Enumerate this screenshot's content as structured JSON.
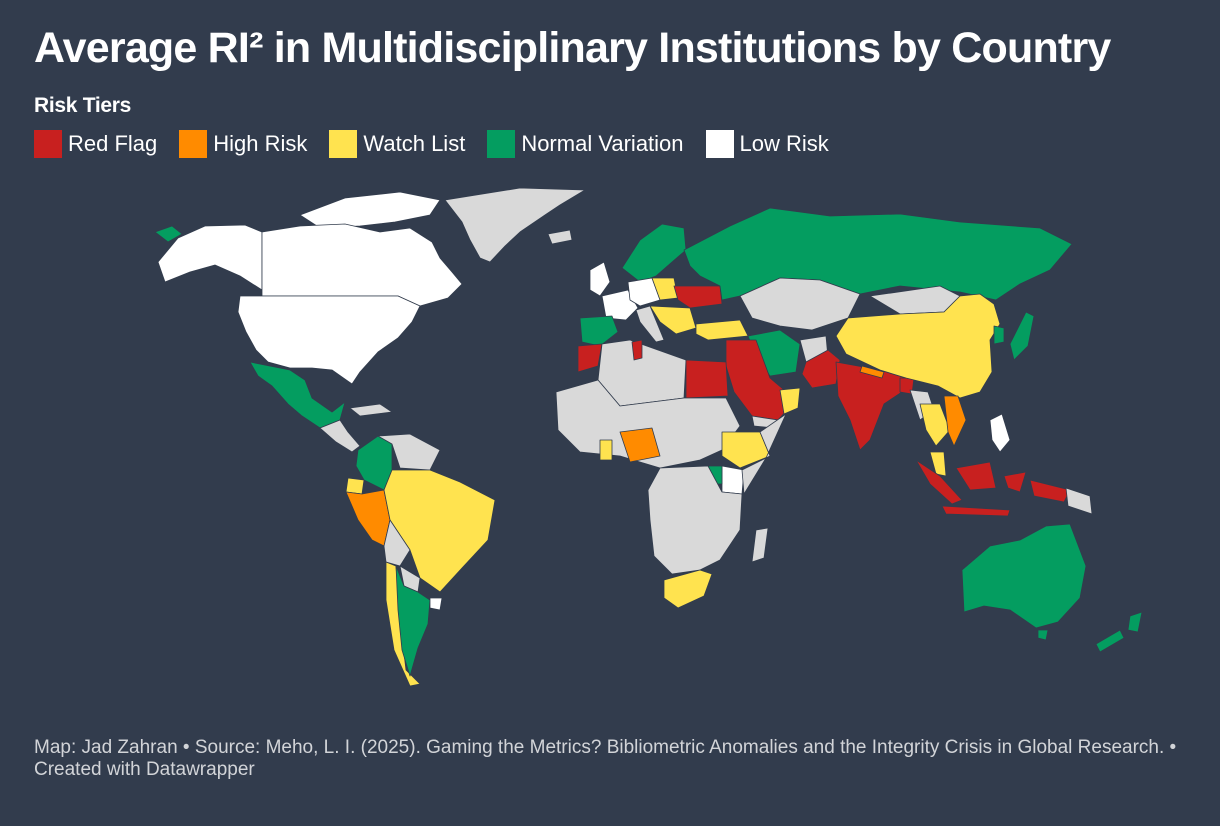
{
  "title": "Average RI² in Multidisciplinary Institutions by Country",
  "legend": {
    "title": "Risk Tiers",
    "items": [
      {
        "label": "Red Flag",
        "color": "#c8201f"
      },
      {
        "label": "High Risk",
        "color": "#ff8b00"
      },
      {
        "label": "Watch List",
        "color": "#ffe34f"
      },
      {
        "label": "Normal Variation",
        "color": "#049d60"
      },
      {
        "label": "Low Risk",
        "color": "#ffffff"
      }
    ]
  },
  "no_data_color": "#d9d9d9",
  "footer": "Map: Jad Zahran • Source: Meho, L. I. (2025). Gaming the Metrics? Bibliometric Anomalies and the Integrity Crisis in Global Research. • Created with Datawrapper"
}
